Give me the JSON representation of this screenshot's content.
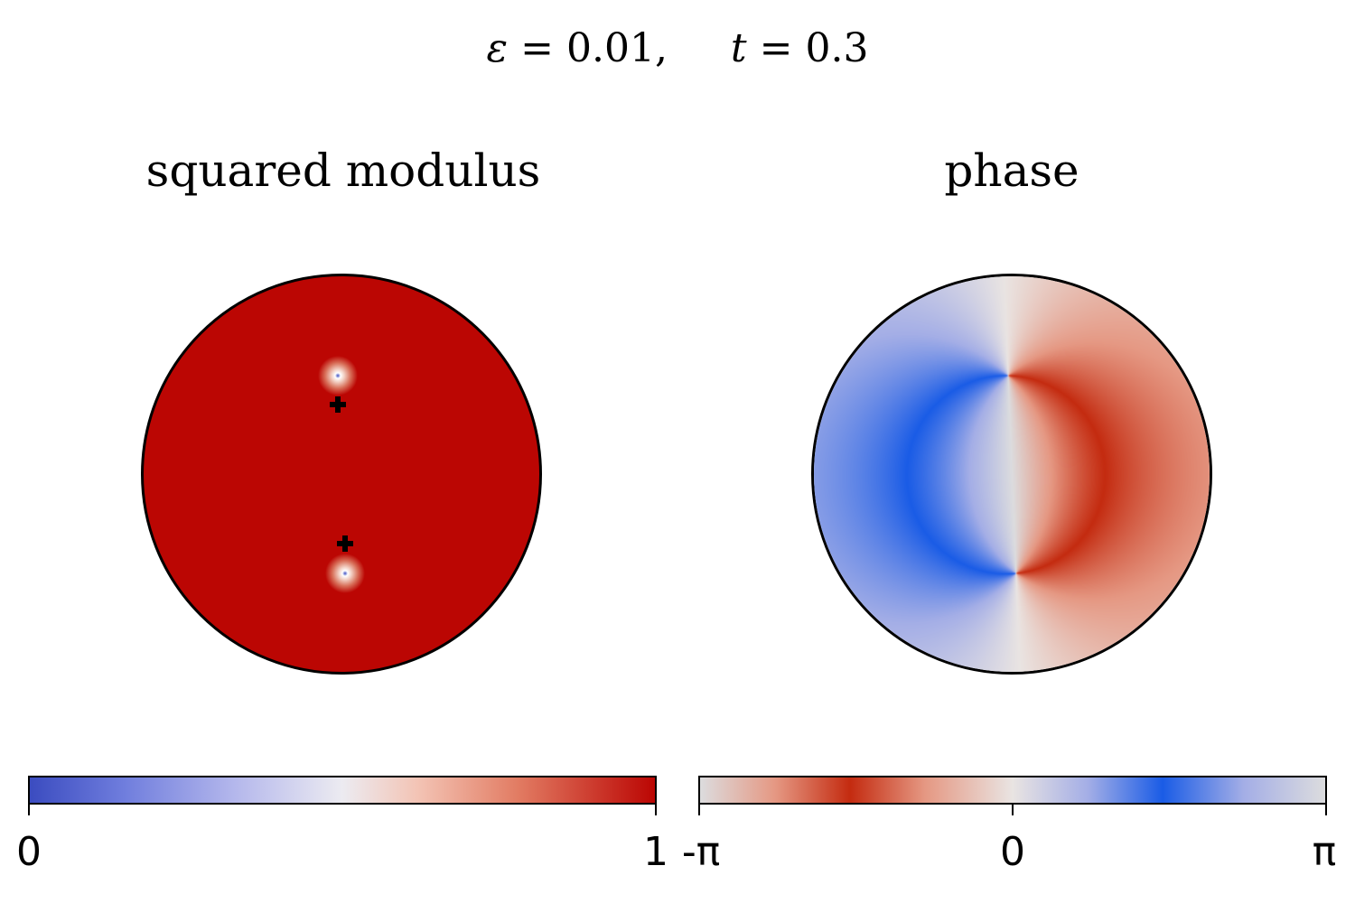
{
  "suptitle": {
    "eps_symbol": "ε",
    "eps_value": "= 0.01,",
    "t_symbol": "t",
    "t_value": "= 0.3"
  },
  "chart_data": [
    {
      "type": "heatmap",
      "title": "squared modulus",
      "domain": "unit disk",
      "colormap": "coolwarm",
      "value_range": [
        0,
        1
      ],
      "background_value": 1,
      "vortex_cores": [
        {
          "x": -0.02,
          "y": 0.5
        },
        {
          "x": 0.02,
          "y": -0.5
        }
      ],
      "cross_markers": [
        {
          "x": -0.02,
          "y": 0.35
        },
        {
          "x": 0.02,
          "y": -0.35
        }
      ],
      "colorbar": {
        "ticks": [
          0,
          1
        ],
        "tick_labels": [
          "0",
          "1"
        ]
      }
    },
    {
      "type": "heatmap",
      "title": "phase",
      "domain": "unit disk",
      "colormap": "cyclic red-white-blue",
      "value_range": [
        "-π",
        "π"
      ],
      "vortex_cores": [
        {
          "x": -0.02,
          "y": 0.5
        },
        {
          "x": 0.02,
          "y": -0.5
        }
      ],
      "colorbar": {
        "ticks": [
          -3.14159,
          0,
          3.14159
        ],
        "tick_labels": [
          "-π",
          "0",
          "π"
        ]
      }
    }
  ]
}
